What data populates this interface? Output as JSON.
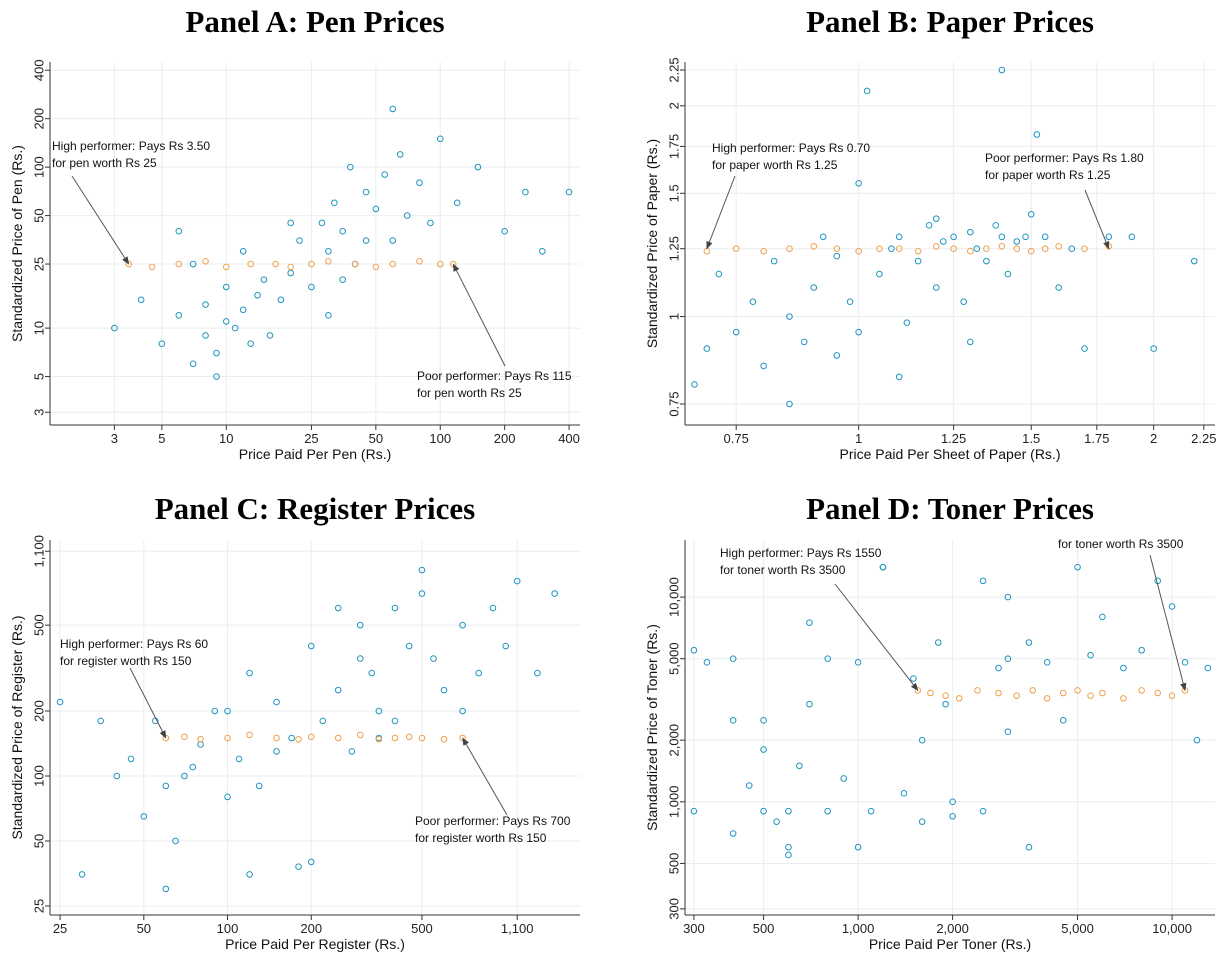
{
  "chart_data": [
    {
      "type": "scatter",
      "title": "Panel A: Pen Prices",
      "xlabel": "Price Paid Per Pen (Rs.)",
      "ylabel": "Standardized Price of Pen (Rs.)",
      "log_x": true,
      "log_y": true,
      "grid": true,
      "xlim": [
        1.5,
        450
      ],
      "ylim": [
        2.5,
        450
      ],
      "xticks": [
        3,
        5,
        10,
        25,
        50,
        100,
        200,
        400
      ],
      "yticks": [
        3,
        5,
        10,
        25,
        50,
        100,
        200,
        400
      ],
      "series": [
        {
          "color": "#1f95bf",
          "x": [
            3,
            4,
            5,
            6,
            7,
            8,
            8,
            9,
            10,
            10,
            11,
            12,
            13,
            14,
            15,
            6,
            7,
            9,
            12,
            18,
            20,
            22,
            25,
            28,
            30,
            32,
            35,
            38,
            40,
            45,
            50,
            55,
            60,
            65,
            70,
            80,
            90,
            100,
            120,
            150,
            200,
            250,
            300,
            400,
            35,
            45,
            60,
            30,
            20,
            16
          ],
          "y": [
            10,
            15,
            8,
            12,
            6,
            9,
            14,
            7,
            11,
            18,
            10,
            13,
            8,
            16,
            20,
            40,
            25,
            5,
            30,
            15,
            22,
            35,
            18,
            45,
            30,
            60,
            40,
            100,
            25,
            70,
            55,
            90,
            35,
            120,
            50,
            80,
            45,
            150,
            60,
            100,
            40,
            70,
            30,
            70,
            20,
            35,
            230,
            12,
            45,
            9
          ]
        },
        {
          "color": "#f0a04b",
          "x": [
            3.5,
            4.5,
            6,
            8,
            10,
            13,
            17,
            20,
            25,
            30,
            40,
            50,
            60,
            80,
            100,
            115
          ],
          "y": [
            25,
            24,
            25,
            26,
            24,
            25,
            25,
            24,
            25,
            26,
            25,
            24,
            25,
            26,
            25,
            25
          ]
        }
      ],
      "annotations": [
        {
          "lines": [
            "High performer: Pays Rs 3.50",
            "for pen worth Rs 25"
          ],
          "x": 3.5,
          "y": 25
        },
        {
          "lines": [
            "Poor performer: Pays Rs 115",
            "for pen worth Rs 25"
          ],
          "x": 115,
          "y": 25
        }
      ]
    },
    {
      "type": "scatter",
      "title": "Panel B: Paper Prices",
      "xlabel": "Price Paid Per Sheet of Paper (Rs.)",
      "ylabel": "Standardized Price of Paper (Rs.)",
      "log_x": true,
      "log_y": true,
      "grid": true,
      "xlim": [
        0.665,
        2.31
      ],
      "ylim": [
        0.7,
        2.31
      ],
      "xticks": [
        0.75,
        1,
        1.25,
        1.5,
        1.75,
        2,
        2.25
      ],
      "yticks": [
        0.75,
        1,
        1.25,
        1.5,
        1.75,
        2,
        2.25
      ],
      "series": [
        {
          "color": "#1f95bf",
          "x": [
            0.68,
            0.7,
            0.72,
            0.75,
            0.78,
            0.8,
            0.82,
            0.85,
            0.88,
            0.9,
            0.92,
            0.95,
            0.98,
            1.0,
            1.02,
            1.05,
            1.08,
            1.1,
            1.12,
            1.15,
            1.18,
            1.2,
            1.22,
            1.25,
            1.28,
            1.3,
            1.32,
            1.35,
            1.38,
            1.4,
            1.42,
            1.45,
            1.48,
            1.5,
            1.52,
            1.55,
            1.6,
            1.65,
            1.7,
            1.8,
            1.9,
            2.0,
            2.2,
            1.0,
            1.4,
            0.85,
            1.1,
            1.3,
            0.95,
            1.2
          ],
          "y": [
            0.8,
            0.9,
            1.15,
            0.95,
            1.05,
            0.85,
            1.2,
            1.0,
            0.92,
            1.1,
            1.3,
            0.88,
            1.05,
            0.95,
            2.1,
            1.15,
            1.25,
            1.3,
            0.98,
            1.2,
            1.35,
            1.1,
            1.28,
            1.3,
            1.05,
            1.32,
            1.25,
            1.2,
            1.35,
            1.3,
            1.15,
            1.28,
            1.3,
            1.4,
            1.82,
            1.3,
            1.1,
            1.25,
            0.9,
            1.3,
            1.3,
            0.9,
            1.2,
            1.55,
            2.25,
            0.75,
            0.82,
            0.92,
            1.22,
            1.38
          ]
        },
        {
          "color": "#f0a04b",
          "x": [
            0.7,
            0.75,
            0.8,
            0.85,
            0.9,
            0.95,
            1.0,
            1.05,
            1.1,
            1.15,
            1.2,
            1.25,
            1.3,
            1.35,
            1.4,
            1.45,
            1.5,
            1.55,
            1.6,
            1.7,
            1.8
          ],
          "y": [
            1.24,
            1.25,
            1.24,
            1.25,
            1.26,
            1.25,
            1.24,
            1.25,
            1.25,
            1.24,
            1.26,
            1.25,
            1.24,
            1.25,
            1.26,
            1.25,
            1.24,
            1.25,
            1.26,
            1.25,
            1.26
          ]
        }
      ],
      "annotations": [
        {
          "lines": [
            "High performer: Pays Rs 0.70",
            "for paper worth Rs 1.25"
          ],
          "x": 0.7,
          "y": 1.25
        },
        {
          "lines": [
            "Poor performer: Pays Rs 1.80",
            "for paper worth Rs 1.25"
          ],
          "x": 1.8,
          "y": 1.25
        }
      ]
    },
    {
      "type": "scatter",
      "title": "Panel C: Register Prices",
      "xlabel": "Price Paid Per Register (Rs.)",
      "ylabel": "Standardized Price of Register (Rs.)",
      "log_x": true,
      "log_y": true,
      "grid": true,
      "xlim": [
        23,
        1850
      ],
      "ylim": [
        22.7,
        1240
      ],
      "xticks": [
        25,
        50,
        100,
        200,
        500,
        {
          "value": 1100,
          "label": "1,100"
        }
      ],
      "yticks": [
        25,
        50,
        100,
        200,
        500,
        {
          "value": 1100,
          "label": "1,100"
        }
      ],
      "series": [
        {
          "color": "#1f95bf",
          "x": [
            25,
            30,
            35,
            40,
            45,
            50,
            55,
            60,
            65,
            70,
            80,
            90,
            100,
            110,
            120,
            130,
            150,
            170,
            200,
            220,
            250,
            280,
            300,
            330,
            350,
            400,
            450,
            500,
            550,
            600,
            700,
            800,
            900,
            1000,
            1100,
            1300,
            1500,
            60,
            100,
            150,
            200,
            300,
            400,
            500,
            700,
            180,
            120,
            75,
            250,
            350
          ],
          "y": [
            220,
            35,
            180,
            100,
            120,
            65,
            180,
            30,
            50,
            100,
            140,
            200,
            80,
            120,
            300,
            90,
            220,
            150,
            400,
            180,
            250,
            130,
            500,
            300,
            200,
            600,
            400,
            900,
            350,
            250,
            500,
            300,
            600,
            400,
            800,
            300,
            700,
            90,
            200,
            130,
            40,
            350,
            180,
            700,
            200,
            38,
            35,
            110,
            600,
            150
          ]
        },
        {
          "color": "#f0a04b",
          "x": [
            60,
            70,
            80,
            100,
            120,
            150,
            180,
            200,
            250,
            300,
            350,
            400,
            450,
            500,
            600,
            700
          ],
          "y": [
            150,
            152,
            148,
            150,
            155,
            150,
            148,
            152,
            150,
            155,
            148,
            150,
            152,
            150,
            148,
            150
          ]
        }
      ],
      "annotations": [
        {
          "lines": [
            "High performer: Pays Rs 60",
            "for register worth Rs 150"
          ],
          "x": 60,
          "y": 150
        },
        {
          "lines": [
            "Poor performer: Pays Rs 700",
            "for register worth Rs 150"
          ],
          "x": 700,
          "y": 150
        }
      ]
    },
    {
      "type": "scatter",
      "title": "Panel D: Toner Prices",
      "xlabel": "Price Paid Per Toner (Rs.)",
      "ylabel": "Standardized Price of Toner (Rs.)",
      "log_x": true,
      "log_y": true,
      "grid": true,
      "xlim": [
        281,
        13700
      ],
      "ylim": [
        280,
        19000
      ],
      "xticks": [
        300,
        500,
        {
          "value": 1000,
          "label": "1,000"
        },
        {
          "value": 2000,
          "label": "2,000"
        },
        {
          "value": 5000,
          "label": "5,000"
        },
        {
          "value": 10000,
          "label": "10,000"
        }
      ],
      "yticks": [
        300,
        500,
        {
          "value": 1000,
          "label": "1,000"
        },
        {
          "value": 2000,
          "label": "2,000"
        },
        {
          "value": 5000,
          "label": "5,000"
        },
        {
          "value": 10000,
          "label": "10,000"
        }
      ],
      "series": [
        {
          "color": "#1f95bf",
          "x": [
            300,
            330,
            400,
            400,
            450,
            500,
            500,
            550,
            600,
            650,
            700,
            800,
            900,
            1000,
            1100,
            1200,
            1400,
            1600,
            1800,
            2000,
            2500,
            3000,
            3500,
            300,
            400,
            500,
            600,
            700,
            800,
            1000,
            1200,
            1500,
            1900,
            2500,
            2800,
            3000,
            3500,
            4000,
            4500,
            5000,
            5500,
            6000,
            7000,
            8000,
            9000,
            10000,
            11000,
            12000,
            13000,
            1600,
            2000,
            600,
            3000
          ],
          "y": [
            900,
            4800,
            700,
            5000,
            1200,
            900,
            2500,
            800,
            600,
            1500,
            7500,
            900,
            1300,
            600,
            900,
            14000,
            1100,
            2000,
            6000,
            850,
            900,
            5000,
            600,
            5500,
            2500,
            1800,
            900,
            3000,
            5000,
            4800,
            14000,
            4000,
            3000,
            12000,
            4500,
            10000,
            6000,
            4800,
            2500,
            14000,
            5200,
            8000,
            4500,
            5500,
            12000,
            9000,
            4800,
            2000,
            4500,
            800,
            1000,
            550,
            2200
          ]
        },
        {
          "color": "#f0a04b",
          "x": [
            1550,
            1700,
            1900,
            2100,
            2400,
            2800,
            3200,
            3600,
            4000,
            4500,
            5000,
            5500,
            6000,
            7000,
            8000,
            9000,
            10000,
            11000
          ],
          "y": [
            3500,
            3400,
            3300,
            3200,
            3500,
            3400,
            3300,
            3500,
            3200,
            3400,
            3500,
            3300,
            3400,
            3200,
            3500,
            3400,
            3300,
            3500
          ]
        }
      ],
      "annotations": [
        {
          "lines": [
            "High performer: Pays Rs 1550",
            "for toner worth Rs 3500"
          ],
          "x": 1550,
          "y": 3500
        },
        {
          "lines": [
            "for toner worth Rs 3500"
          ],
          "x": 11000,
          "y": 3500
        }
      ]
    }
  ]
}
